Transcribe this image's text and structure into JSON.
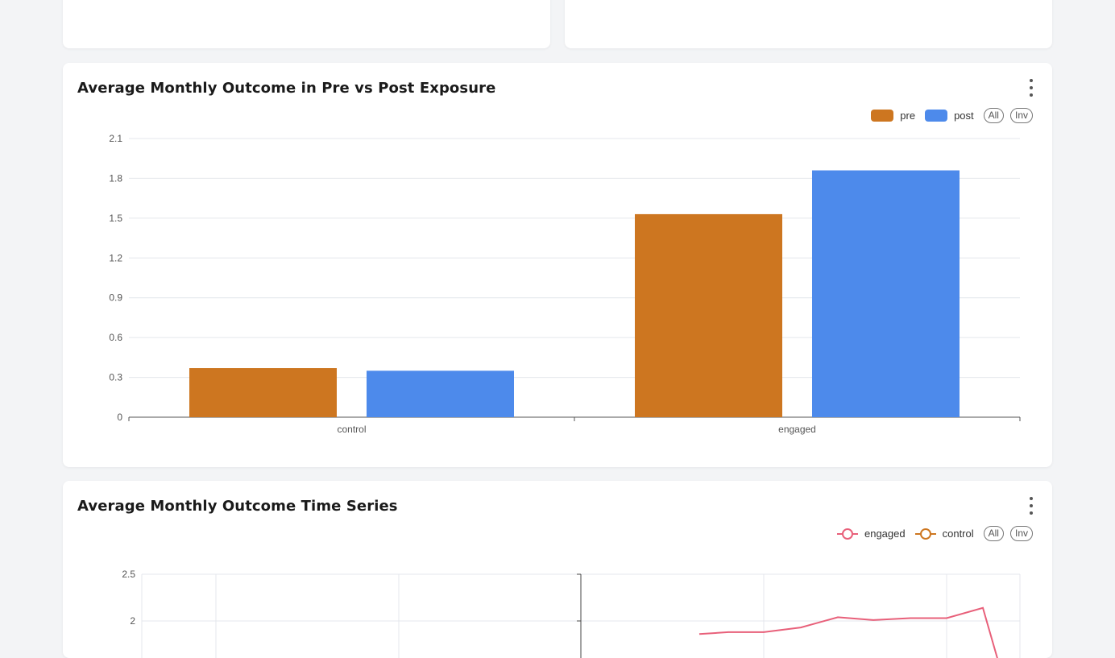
{
  "top_cards": [
    "",
    ""
  ],
  "bar_panel": {
    "title": "Average Monthly Outcome in Pre vs Post Exposure",
    "legend": [
      {
        "label": "pre",
        "color": "#cd7620"
      },
      {
        "label": "post",
        "color": "#4d8aeb"
      }
    ],
    "all_label": "All",
    "inv_label": "Inv"
  },
  "line_panel": {
    "title": "Average Monthly Outcome Time Series",
    "legend": [
      {
        "label": "engaged",
        "color": "#e8607a"
      },
      {
        "label": "control",
        "color": "#cd7620"
      }
    ],
    "all_label": "All",
    "inv_label": "Inv"
  },
  "chart_data": [
    {
      "type": "bar",
      "categories": [
        "control",
        "engaged"
      ],
      "series": [
        {
          "name": "pre",
          "values": [
            0.37,
            1.53
          ],
          "color": "#cd7620"
        },
        {
          "name": "post",
          "values": [
            0.35,
            1.86
          ],
          "color": "#4d8aeb"
        }
      ],
      "yticks": [
        "0",
        "0.3",
        "0.6",
        "0.9",
        "1.2",
        "1.5",
        "1.8",
        "2.1"
      ],
      "ylim": [
        0,
        2.1
      ],
      "grid": true
    },
    {
      "type": "line",
      "yticks": [
        "2",
        "2.5"
      ],
      "ylim_visible": [
        2,
        2.5
      ],
      "series": [
        {
          "name": "engaged",
          "color": "#e8607a",
          "values": [
            1.86,
            1.88,
            1.88,
            1.93,
            2.04,
            2.01,
            2.03,
            2.03,
            2.14,
            1.6
          ]
        },
        {
          "name": "control",
          "color": "#cd7620",
          "values": []
        }
      ],
      "grid": true
    }
  ]
}
